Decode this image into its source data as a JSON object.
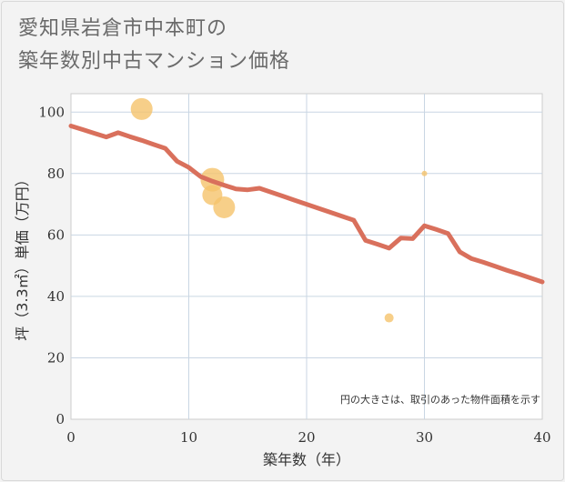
{
  "title_line1": "愛知県岩倉市中本町の",
  "title_line2": "築年数別中古マンション価格",
  "chart_data": {
    "type": "scatter",
    "xlabel": "築年数（年）",
    "ylabel": "坪（3.3㎡）単価（万円）",
    "xlim": [
      0,
      40
    ],
    "ylim": [
      0,
      106
    ],
    "xticks": [
      0,
      10,
      20,
      30,
      40
    ],
    "yticks": [
      0,
      20,
      40,
      60,
      80,
      100
    ],
    "grid": true,
    "note": "円の大きさは、取引のあった物件面積を示す",
    "colors": {
      "line": "#d9705c",
      "bubble": "#f5c36b",
      "grid": "#c9d6e3"
    },
    "points": [
      {
        "x": 6,
        "y": 101,
        "size": 12
      },
      {
        "x": 12,
        "y": 78,
        "size": 13
      },
      {
        "x": 12,
        "y": 73,
        "size": 11
      },
      {
        "x": 13,
        "y": 69,
        "size": 12
      },
      {
        "x": 27,
        "y": 33,
        "size": 5
      },
      {
        "x": 30,
        "y": 80,
        "size": 3
      }
    ],
    "trend": {
      "x": [
        0,
        1,
        2,
        3,
        4,
        5,
        6,
        7,
        8,
        9,
        10,
        11,
        12,
        13,
        14,
        15,
        16,
        17,
        18,
        19,
        20,
        21,
        22,
        23,
        24,
        25,
        26,
        27,
        28,
        29,
        30,
        31,
        32,
        33,
        34,
        35,
        36,
        37,
        38,
        39,
        40
      ],
      "y": [
        95.5,
        94.3,
        93.1,
        91.9,
        93.3,
        92.0,
        90.8,
        89.5,
        88.2,
        84.0,
        82.0,
        79.0,
        77.5,
        76.2,
        75.0,
        74.7,
        75.2,
        73.9,
        72.6,
        71.3,
        70.0,
        68.7,
        67.4,
        66.1,
        64.8,
        58.2,
        57.0,
        55.7,
        59.0,
        58.8,
        63.0,
        61.8,
        60.5,
        54.5,
        52.3,
        51.1,
        49.8,
        48.5,
        47.3,
        46.0,
        44.7
      ]
    }
  }
}
